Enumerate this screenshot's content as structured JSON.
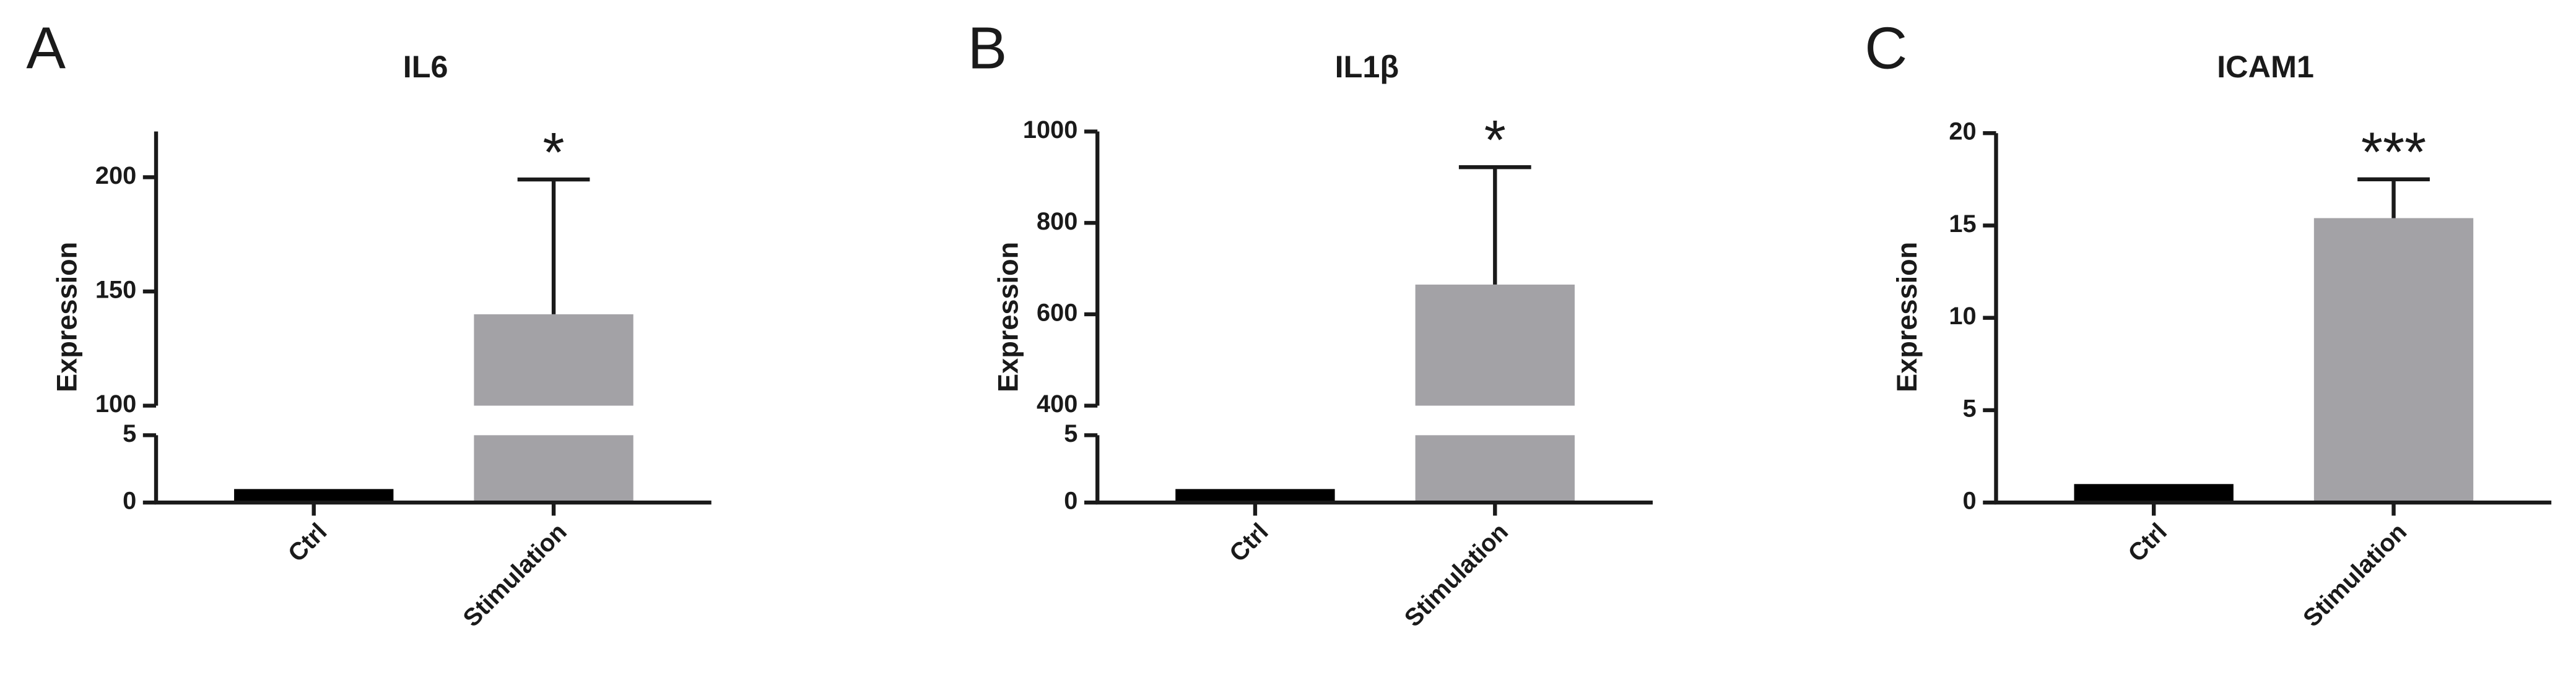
{
  "chart_data": [
    {
      "type": "bar",
      "panel": "A",
      "title": "IL6",
      "ylabel": "Expression",
      "categories": [
        "Ctrl",
        "Stimulation"
      ],
      "values": [
        1,
        140
      ],
      "errors": [
        null,
        59
      ],
      "annotations": [
        null,
        "*"
      ],
      "colors": [
        "#000000",
        "#a3a2a6"
      ],
      "segments": [
        {
          "ylim": [
            0,
            5
          ],
          "yticks": [
            0,
            5
          ]
        },
        {
          "ylim": [
            100,
            220
          ],
          "yticks": [
            100,
            150,
            200
          ]
        }
      ]
    },
    {
      "type": "bar",
      "panel": "B",
      "title": "IL1β",
      "ylabel": "Expression",
      "categories": [
        "Ctrl",
        "Stimulation"
      ],
      "values": [
        1,
        665
      ],
      "errors": [
        null,
        257
      ],
      "annotations": [
        null,
        "*"
      ],
      "colors": [
        "#000000",
        "#a3a2a6"
      ],
      "segments": [
        {
          "ylim": [
            0,
            5
          ],
          "yticks": [
            0,
            5
          ]
        },
        {
          "ylim": [
            400,
            1000
          ],
          "yticks": [
            400,
            600,
            800,
            1000
          ]
        }
      ]
    },
    {
      "type": "bar",
      "panel": "C",
      "title": "ICAM1",
      "ylabel": "Expression",
      "categories": [
        "Ctrl",
        "Stimulation"
      ],
      "values": [
        1,
        15.4
      ],
      "errors": [
        null,
        2.1
      ],
      "annotations": [
        null,
        "***"
      ],
      "colors": [
        "#000000",
        "#a3a2a6"
      ],
      "ylim": [
        0,
        20
      ],
      "yticks": [
        0,
        5,
        10,
        15,
        20
      ]
    }
  ]
}
